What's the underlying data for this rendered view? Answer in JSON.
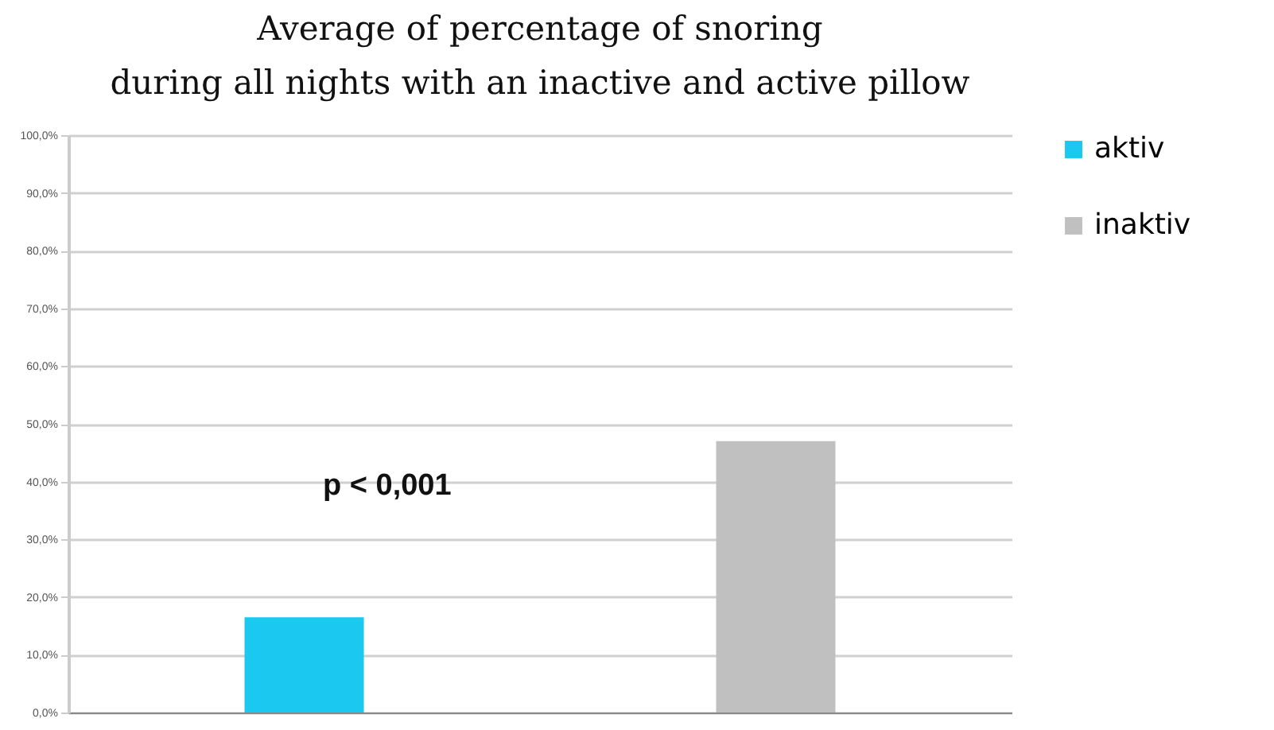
{
  "chart_data": {
    "type": "bar",
    "title": [
      "Average of percentage of snoring",
      "during all nights with an inactive and active pillow"
    ],
    "categories": [
      null,
      null
    ],
    "series": [
      {
        "name": "aktiv",
        "color": "#1ac8f0",
        "values": [
          16.5,
          null
        ]
      },
      {
        "name": "inaktiv",
        "color": "#c0c0c0",
        "values": [
          null,
          47.0
        ]
      }
    ],
    "ylim": [
      0,
      100
    ],
    "yticks": [
      {
        "value": 0,
        "label": "0,0%"
      },
      {
        "value": 10,
        "label": "10,0%"
      },
      {
        "value": 20,
        "label": "20,0%"
      },
      {
        "value": 30,
        "label": "30,0%"
      },
      {
        "value": 40,
        "label": "40,0%"
      },
      {
        "value": 50,
        "label": "50,0%"
      },
      {
        "value": 60,
        "label": "60,0%"
      },
      {
        "value": 70,
        "label": "70,0%"
      },
      {
        "value": 80,
        "label": "80,0%"
      },
      {
        "value": 90,
        "label": "90,0%"
      },
      {
        "value": 100,
        "label": "100,0%"
      }
    ],
    "annotations": [
      "p < 0,001"
    ],
    "grid": "y",
    "legend": "right",
    "tick_labels": "y"
  }
}
